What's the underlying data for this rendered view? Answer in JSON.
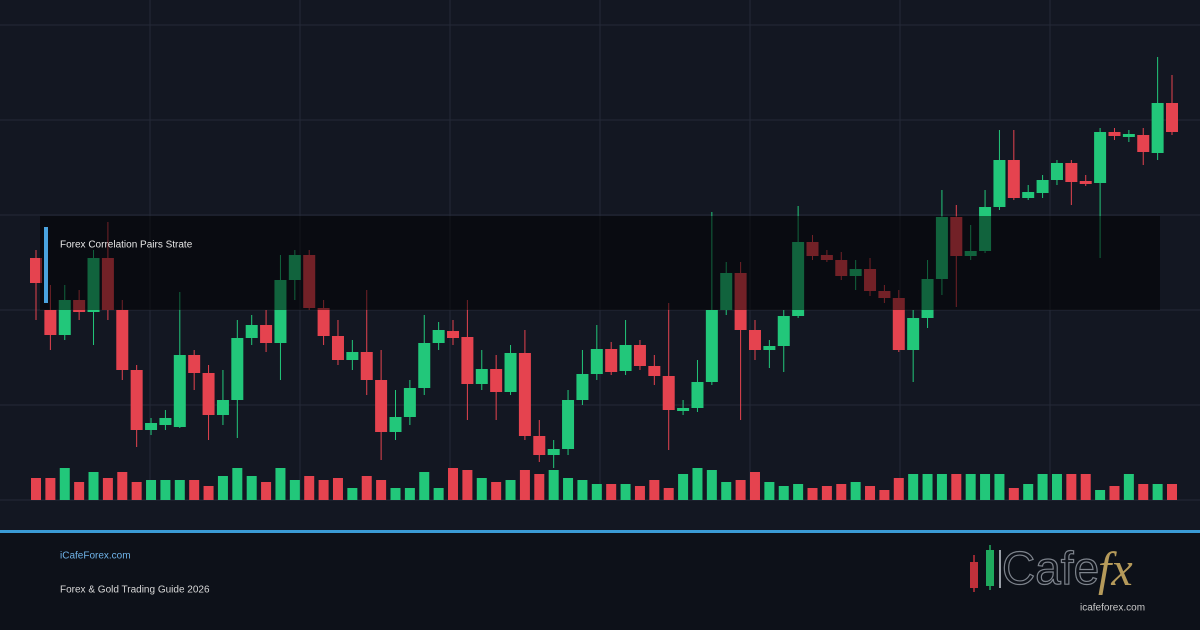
{
  "chart_data": {
    "type": "candlestick",
    "annotation": "Forex Correlation Pairs Strate",
    "ylim": [
      0,
      500
    ],
    "up_color": "#22c77a",
    "down_color": "#e5434f",
    "open": [
      242,
      190,
      165,
      200,
      188,
      242,
      190,
      130,
      70,
      75,
      73,
      145,
      127,
      85,
      100,
      162,
      175,
      157,
      220,
      245,
      192,
      164,
      140,
      148,
      120,
      68,
      83,
      112,
      157,
      169,
      163,
      116,
      131,
      108,
      147,
      64,
      45,
      51,
      100,
      126,
      151,
      129,
      155,
      134,
      124,
      89,
      92,
      118,
      190,
      227,
      170,
      150,
      154,
      184,
      258,
      245,
      240,
      224,
      231,
      209,
      202,
      150,
      182,
      221,
      283,
      244,
      249,
      293,
      340,
      302,
      307,
      320,
      337,
      319,
      317,
      368,
      363,
      365,
      347,
      397
    ],
    "high": [
      250,
      215,
      215,
      210,
      250,
      278,
      200,
      135,
      82,
      90,
      208,
      150,
      135,
      130,
      180,
      185,
      190,
      245,
      250,
      250,
      200,
      180,
      160,
      210,
      150,
      110,
      120,
      185,
      178,
      180,
      200,
      150,
      145,
      155,
      170,
      80,
      60,
      110,
      150,
      175,
      158,
      180,
      160,
      145,
      197,
      100,
      140,
      288,
      238,
      238,
      180,
      160,
      190,
      294,
      265,
      250,
      248,
      240,
      242,
      215,
      210,
      190,
      240,
      310,
      295,
      275,
      310,
      370,
      370,
      315,
      325,
      340,
      340,
      325,
      372,
      372,
      370,
      372,
      443,
      425
    ],
    "low": [
      180,
      150,
      160,
      180,
      155,
      180,
      120,
      53,
      65,
      70,
      72,
      110,
      60,
      75,
      62,
      155,
      148,
      120,
      200,
      190,
      155,
      135,
      130,
      105,
      40,
      60,
      75,
      105,
      150,
      155,
      80,
      110,
      80,
      105,
      60,
      38,
      32,
      45,
      95,
      120,
      125,
      125,
      130,
      115,
      50,
      85,
      88,
      115,
      185,
      80,
      140,
      132,
      128,
      182,
      240,
      238,
      220,
      210,
      204,
      197,
      148,
      118,
      172,
      205,
      193,
      240,
      247,
      290,
      300,
      300,
      302,
      315,
      295,
      314,
      242,
      360,
      358,
      335,
      340,
      365
    ],
    "close": [
      217,
      165,
      200,
      188,
      242,
      190,
      130,
      70,
      77,
      82,
      145,
      127,
      85,
      100,
      162,
      175,
      157,
      220,
      245,
      192,
      164,
      140,
      148,
      120,
      68,
      83,
      112,
      157,
      170,
      162,
      116,
      131,
      108,
      147,
      64,
      45,
      51,
      100,
      126,
      151,
      128,
      155,
      134,
      124,
      90,
      92,
      118,
      190,
      227,
      170,
      150,
      154,
      184,
      258,
      244,
      240,
      224,
      231,
      209,
      202,
      150,
      182,
      221,
      283,
      244,
      249,
      293,
      340,
      302,
      308,
      320,
      337,
      318,
      316,
      368,
      364,
      366,
      348,
      397,
      368
    ],
    "volume": [
      22,
      22,
      32,
      18,
      28,
      22,
      28,
      18,
      20,
      20,
      20,
      20,
      14,
      24,
      32,
      24,
      18,
      32,
      20,
      24,
      20,
      22,
      12,
      24,
      20,
      12,
      12,
      28,
      12,
      32,
      30,
      22,
      18,
      20,
      30,
      26,
      30,
      22,
      20,
      16,
      16,
      16,
      14,
      20,
      12,
      26,
      32,
      30,
      18,
      20,
      28,
      18,
      14,
      16,
      12,
      14,
      16,
      18,
      14,
      10,
      22,
      26,
      26,
      26,
      26,
      26,
      26,
      26,
      12,
      16,
      26,
      26,
      26,
      26,
      10,
      14,
      26,
      16,
      16,
      16
    ]
  },
  "footer": {
    "site": "iCafeForex.com",
    "subtitle": "Forex & Gold Trading Guide 2026"
  },
  "logo": {
    "word": "Cafe",
    "mark": "fx",
    "url": "icafeforex.com"
  }
}
